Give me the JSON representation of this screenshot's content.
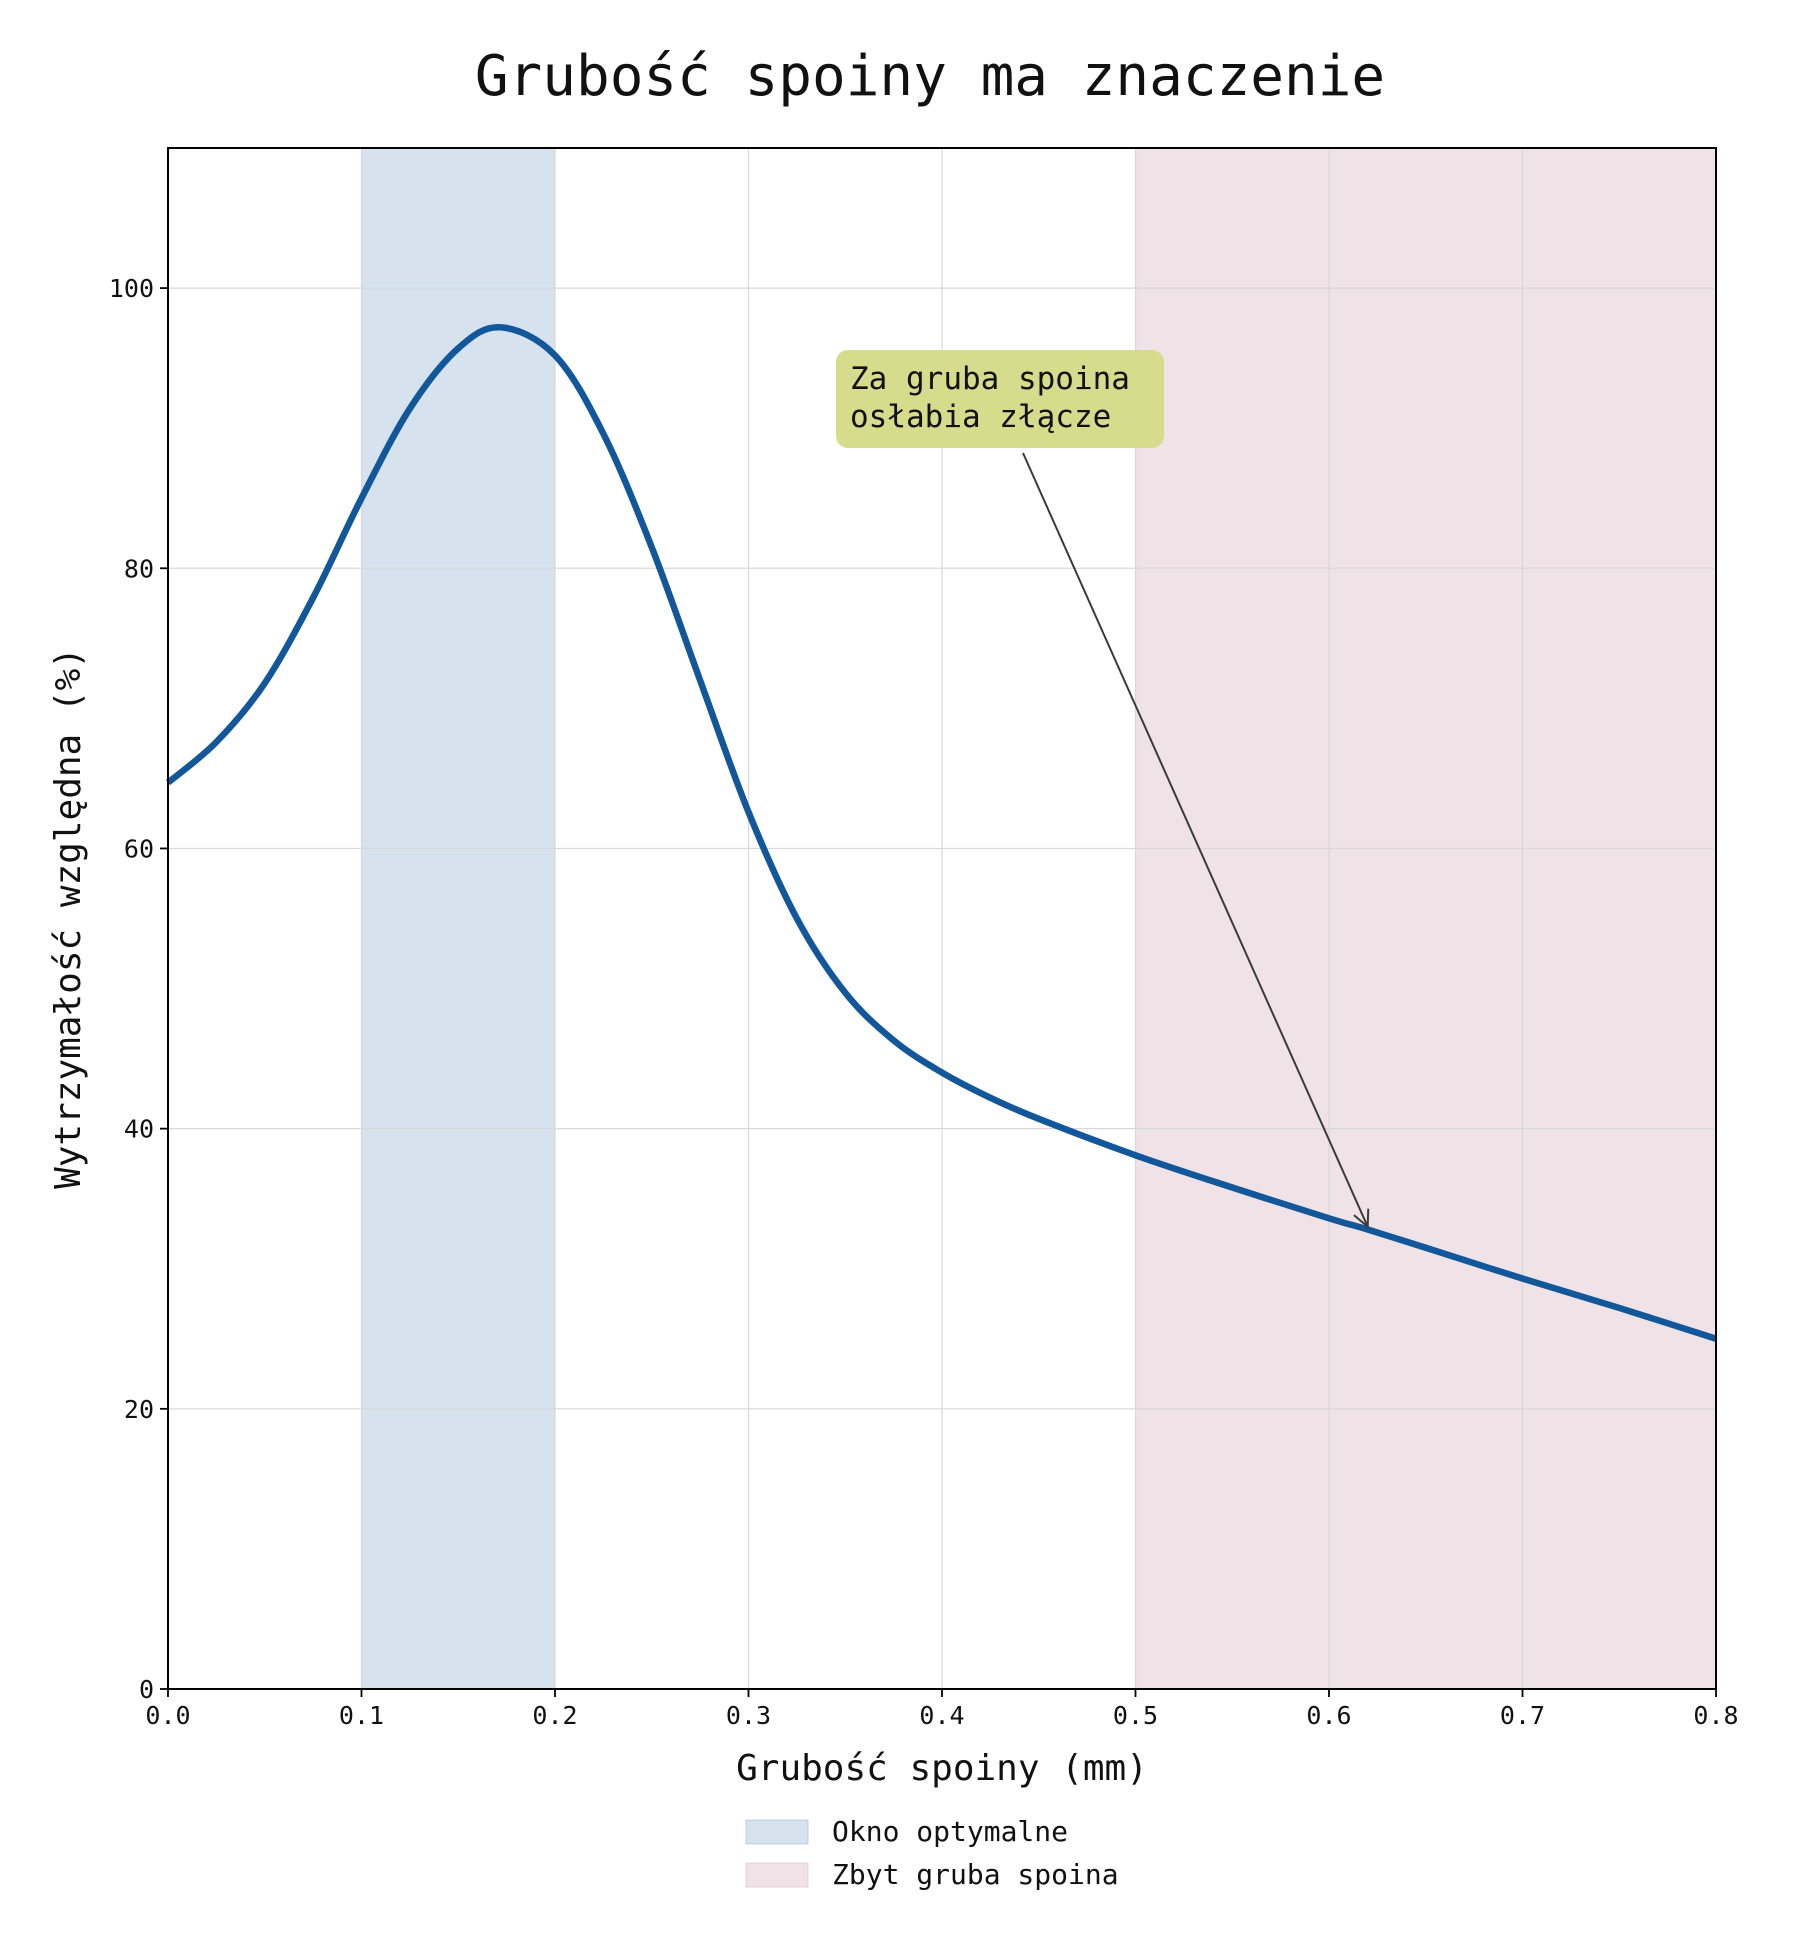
{
  "chart_data": {
    "type": "line",
    "title": "Grubość spoiny ma znaczenie",
    "xlabel": "Grubość spoiny (mm)",
    "ylabel": "Wytrzymałość względna (%)",
    "xlim": [
      0.0,
      0.8
    ],
    "ylim": [
      0,
      110
    ],
    "xticks": [
      "0.0",
      "0.1",
      "0.2",
      "0.3",
      "0.4",
      "0.5",
      "0.6",
      "0.7",
      "0.8"
    ],
    "yticks": [
      "0",
      "20",
      "40",
      "60",
      "80",
      "100"
    ],
    "grid": true,
    "legend_position": "bottom-center",
    "series": [
      {
        "color": "#12579a",
        "x": [
          0.0,
          0.025,
          0.05,
          0.075,
          0.1,
          0.125,
          0.15,
          0.172,
          0.2,
          0.225,
          0.25,
          0.275,
          0.3,
          0.325,
          0.35,
          0.375,
          0.4,
          0.425,
          0.45,
          0.5,
          0.55,
          0.6,
          0.62,
          0.65,
          0.7,
          0.75,
          0.8
        ],
        "y": [
          64.7,
          67.6,
          71.8,
          77.9,
          85.0,
          91.4,
          95.7,
          97.2,
          95.2,
          89.6,
          81.5,
          72.0,
          62.6,
          55.0,
          49.7,
          46.3,
          44.0,
          42.2,
          40.7,
          38.1,
          35.8,
          33.6,
          32.8,
          31.5,
          29.3,
          27.2,
          25.0
        ]
      }
    ],
    "bands": [
      {
        "label": "Okno optymalne",
        "x_range": [
          0.1,
          0.2
        ],
        "color": "#9ebad4",
        "opacity": 0.42
      },
      {
        "label": "Zbyt gruba spoina",
        "x_range": [
          0.5,
          0.8
        ],
        "color": "#d9bcc8",
        "opacity": 0.42
      }
    ],
    "annotation": {
      "lines": [
        "Za gruba spoina",
        "osłabia złącze"
      ],
      "target_x": 0.62,
      "target_y": 33.0,
      "box_color": "#d6dc8c"
    }
  }
}
